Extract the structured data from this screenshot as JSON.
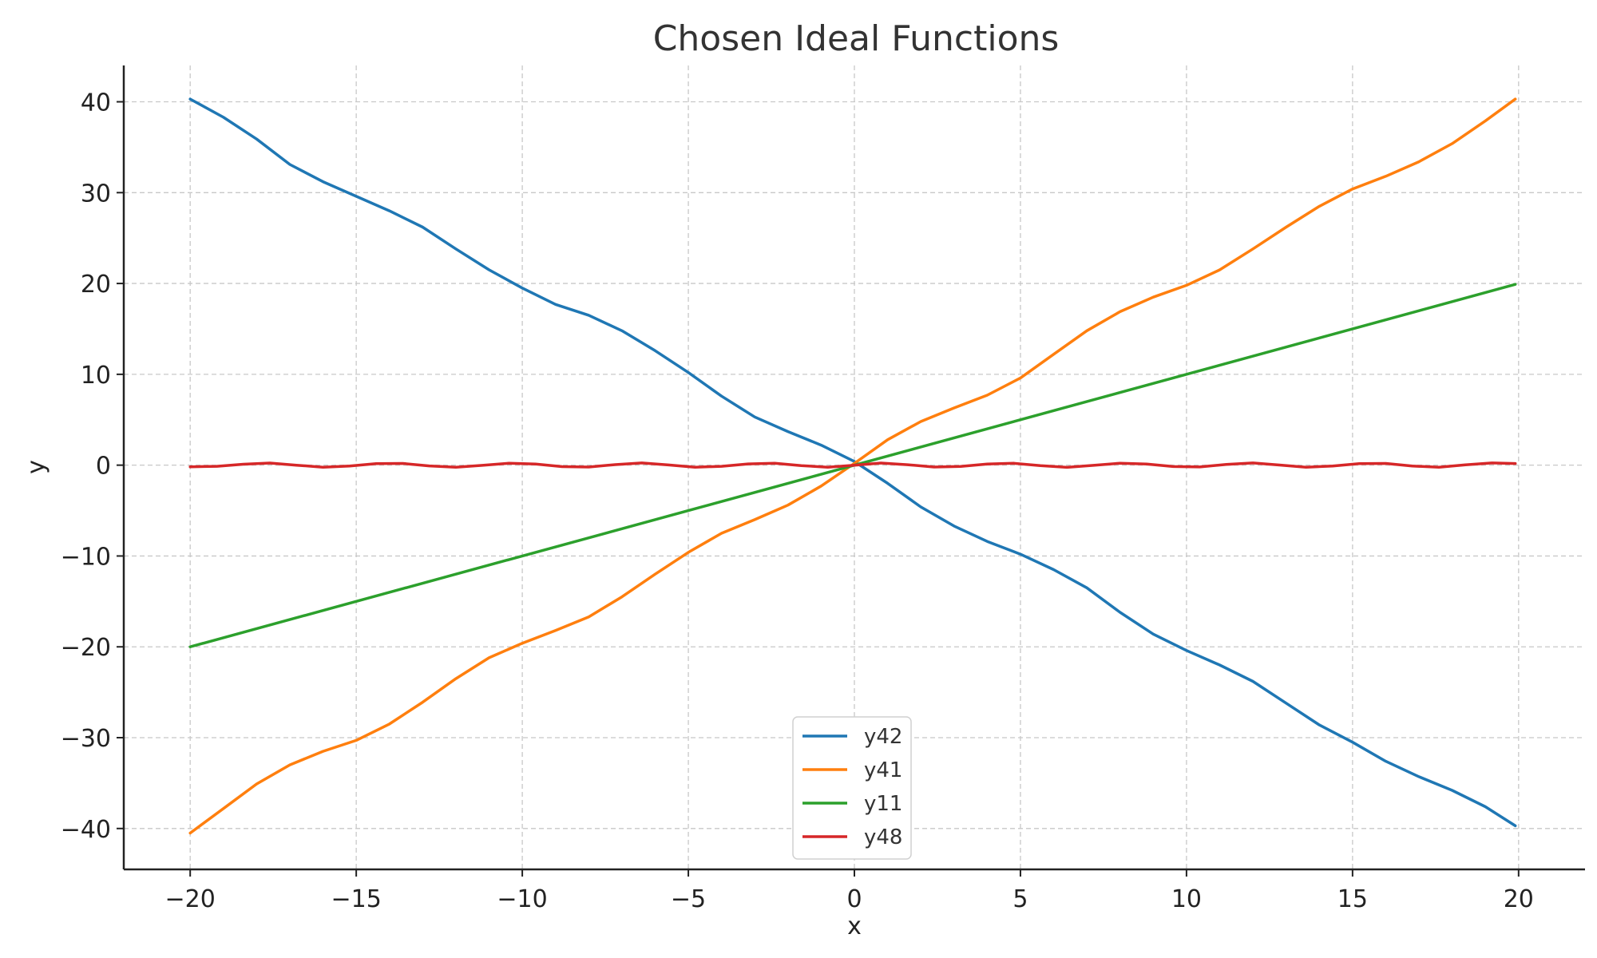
{
  "chart_data": {
    "type": "line",
    "title": "Chosen Ideal Functions",
    "xlabel": "x",
    "ylabel": "y",
    "xlim": [
      -22,
      22
    ],
    "ylim": [
      -44.5,
      44
    ],
    "xticks": [
      -20,
      -15,
      -10,
      -5,
      0,
      5,
      10,
      15,
      20
    ],
    "yticks": [
      -40,
      -30,
      -20,
      -10,
      0,
      10,
      20,
      30,
      40
    ],
    "xtick_labels": [
      "−20",
      "−15",
      "−10",
      "−5",
      "0",
      "5",
      "10",
      "15",
      "20"
    ],
    "ytick_labels": [
      "−40",
      "−30",
      "−20",
      "−10",
      "0",
      "10",
      "20",
      "30",
      "40"
    ],
    "grid": true,
    "legend_position": "bottom-center",
    "series": [
      {
        "name": "y42",
        "color": "#1f77b4",
        "x": [
          -20,
          -19,
          -18,
          -17,
          -16,
          -15,
          -14,
          -13,
          -12,
          -11,
          -10,
          -9,
          -8,
          -7,
          -6,
          -5,
          -4,
          -3,
          -2,
          -1,
          0,
          1,
          2,
          3,
          4,
          5,
          6,
          7,
          8,
          9,
          10,
          11,
          12,
          13,
          14,
          15,
          16,
          17,
          18,
          19,
          19.9
        ],
        "y": [
          40.3,
          38.3,
          35.9,
          33.1,
          31.2,
          29.6,
          28.0,
          26.2,
          23.8,
          21.5,
          19.5,
          17.7,
          16.5,
          14.8,
          12.6,
          10.2,
          7.6,
          5.3,
          3.7,
          2.2,
          0.4,
          -2.0,
          -4.6,
          -6.7,
          -8.4,
          -9.8,
          -11.5,
          -13.5,
          -16.2,
          -18.6,
          -20.4,
          -22.0,
          -23.8,
          -26.2,
          -28.6,
          -30.5,
          -32.6,
          -34.3,
          -35.8,
          -37.6,
          -39.7
        ]
      },
      {
        "name": "y41",
        "color": "#ff7f0e",
        "x": [
          -20,
          -19,
          -18,
          -17,
          -16,
          -15,
          -14,
          -13,
          -12,
          -11,
          -10,
          -9,
          -8,
          -7,
          -6,
          -5,
          -4,
          -3,
          -2,
          -1,
          0,
          1,
          2,
          3,
          4,
          5,
          6,
          7,
          8,
          9,
          10,
          11,
          12,
          13,
          14,
          15,
          16,
          17,
          18,
          19,
          19.9
        ],
        "y": [
          -40.5,
          -37.8,
          -35.1,
          -33.0,
          -31.5,
          -30.3,
          -28.5,
          -26.1,
          -23.5,
          -21.2,
          -19.6,
          -18.2,
          -16.7,
          -14.5,
          -12.0,
          -9.6,
          -7.5,
          -6.0,
          -4.4,
          -2.3,
          0.2,
          2.8,
          4.8,
          6.3,
          7.7,
          9.6,
          12.2,
          14.8,
          16.9,
          18.5,
          19.8,
          21.5,
          23.8,
          26.2,
          28.5,
          30.4,
          31.8,
          33.4,
          35.4,
          37.9,
          40.3
        ]
      },
      {
        "name": "y11",
        "color": "#2ca02c",
        "x": [
          -20,
          19.9
        ],
        "y": [
          -20.0,
          19.9
        ]
      },
      {
        "name": "y48",
        "color": "#d62728",
        "x": [
          -20,
          -19.2,
          -18.4,
          -17.6,
          -16.8,
          -16.0,
          -15.2,
          -14.4,
          -13.6,
          -12.8,
          -12.0,
          -11.2,
          -10.4,
          -9.6,
          -8.8,
          -8.0,
          -7.2,
          -6.4,
          -5.6,
          -4.8,
          -4.0,
          -3.2,
          -2.4,
          -1.6,
          -0.8,
          0.0,
          0.8,
          1.6,
          2.4,
          3.2,
          4.0,
          4.8,
          5.6,
          6.4,
          7.2,
          8.0,
          8.8,
          9.6,
          10.4,
          11.2,
          12.0,
          12.8,
          13.6,
          14.4,
          15.2,
          16.0,
          16.8,
          17.6,
          18.4,
          19.2,
          19.9
        ],
        "y": [
          -0.18,
          -0.13,
          0.1,
          0.23,
          0.0,
          -0.22,
          -0.1,
          0.17,
          0.19,
          -0.08,
          -0.23,
          -0.02,
          0.22,
          0.12,
          -0.16,
          -0.21,
          0.06,
          0.24,
          0.02,
          -0.22,
          -0.13,
          0.14,
          0.21,
          -0.05,
          -0.23,
          0.0,
          0.23,
          0.05,
          -0.21,
          -0.14,
          0.13,
          0.21,
          -0.06,
          -0.24,
          -0.02,
          0.22,
          0.12,
          -0.15,
          -0.2,
          0.08,
          0.24,
          0.01,
          -0.22,
          -0.1,
          0.17,
          0.19,
          -0.09,
          -0.23,
          0.04,
          0.24,
          0.18
        ]
      }
    ]
  }
}
